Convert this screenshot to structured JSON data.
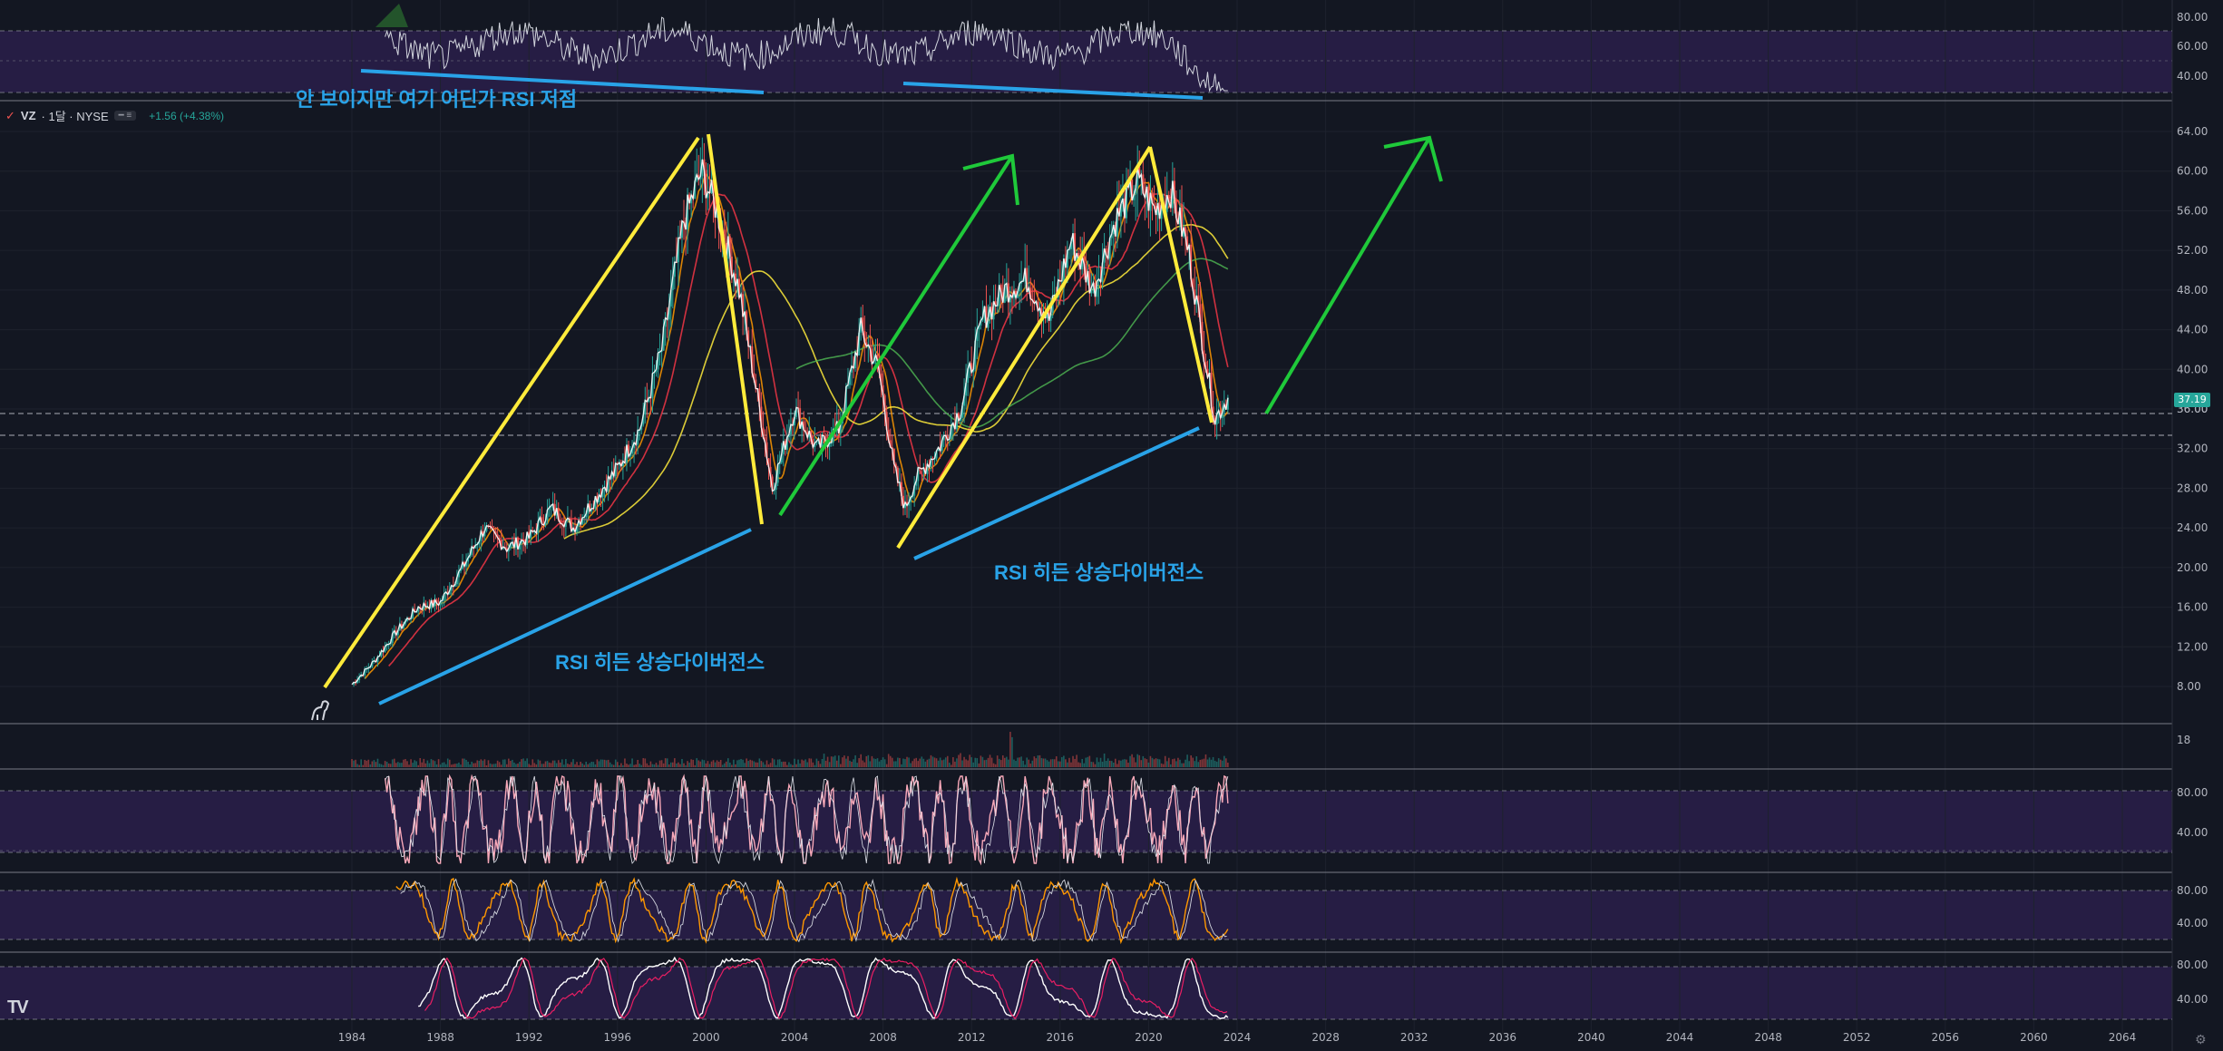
{
  "legend": {
    "checkbox": "✓",
    "symbol": "VZ",
    "interval": "· 1달 · NYSE",
    "pill": "━ ≡",
    "change": "+1.56 (+4.38%)"
  },
  "annotations": {
    "rsi_low": "안 보이지만 여기 어딘가 RSI 저점",
    "hidden_div_1": "RSI 히든 상승다이버전스",
    "hidden_div_2": "RSI 히든 상승다이버전스"
  },
  "price_badge": "37.19",
  "price_badge_sub": "36.00",
  "logo": "TV",
  "colors": {
    "background": "#131722",
    "candle_up": "#26a69a",
    "candle_down": "#ef5350",
    "yellow_lines": "#ffeb3b",
    "green_arrows": "#1fc93a",
    "blue_lines": "#29a3e8",
    "indicator_band": "#2a1f4a"
  },
  "chart_data": {
    "type": "line",
    "symbol": "VZ",
    "interval": "1M",
    "exchange": "NYSE",
    "x_ticks": [
      "1984",
      "1988",
      "1992",
      "1996",
      "2000",
      "2004",
      "2008",
      "2012",
      "2016",
      "2020",
      "2024",
      "2028",
      "2032",
      "2036",
      "2040",
      "2044",
      "2048",
      "2052",
      "2056",
      "2060",
      "2064"
    ],
    "y_ticks": [
      "8.00",
      "12.00",
      "16.00",
      "20.00",
      "24.00",
      "28.00",
      "32.00",
      "36.00",
      "40.00",
      "44.00",
      "48.00",
      "52.00",
      "56.00",
      "60.00",
      "64.00"
    ],
    "ylim": [
      5,
      66
    ],
    "series": [
      {
        "x": [
          1984.0,
          1985.0,
          1986.0,
          1987.0,
          1988.0,
          1989.0,
          1990.0,
          1991.0,
          1992.0,
          1993.0,
          1994.0,
          1995.0,
          1996.0,
          1997.0,
          1998.0,
          1999.0,
          1999.8,
          2000.5,
          2001.5,
          2002.5,
          2003.0,
          2004.0,
          2005.0,
          2006.0,
          2007.0,
          2007.8,
          2008.5,
          2009.0,
          2009.5,
          2010.5,
          2011.5,
          2012.5,
          2013.5,
          2014.5,
          2015.5,
          2016.5,
          2017.5,
          2018.5,
          2019.5,
          2020.3,
          2021.0,
          2021.8,
          2022.5,
          2023.0,
          2023.6
        ],
        "values": [
          8.2,
          10.5,
          13.5,
          16.0,
          16.5,
          20.0,
          24.0,
          22.0,
          23.0,
          26.0,
          24.0,
          27.0,
          30.0,
          34.0,
          42.0,
          55.0,
          60.0,
          56.0,
          48.0,
          35.0,
          28.0,
          36.0,
          32.0,
          34.0,
          44.0,
          40.0,
          30.0,
          26.0,
          29.0,
          32.0,
          36.0,
          45.0,
          48.0,
          49.0,
          45.0,
          53.0,
          48.0,
          55.0,
          59.0,
          56.0,
          58.0,
          52.0,
          42.0,
          35.0,
          37.2
        ]
      }
    ]
  },
  "volume_ticks": [
    "18"
  ],
  "indicator_ticks": {
    "rsi_top": [
      "80.00",
      "60.00",
      "40.00"
    ],
    "stoch1": [
      "80.00",
      "40.00"
    ],
    "stoch2": [
      "80.00",
      "40.00"
    ],
    "stoch3": [
      "80.00",
      "40.00"
    ]
  }
}
